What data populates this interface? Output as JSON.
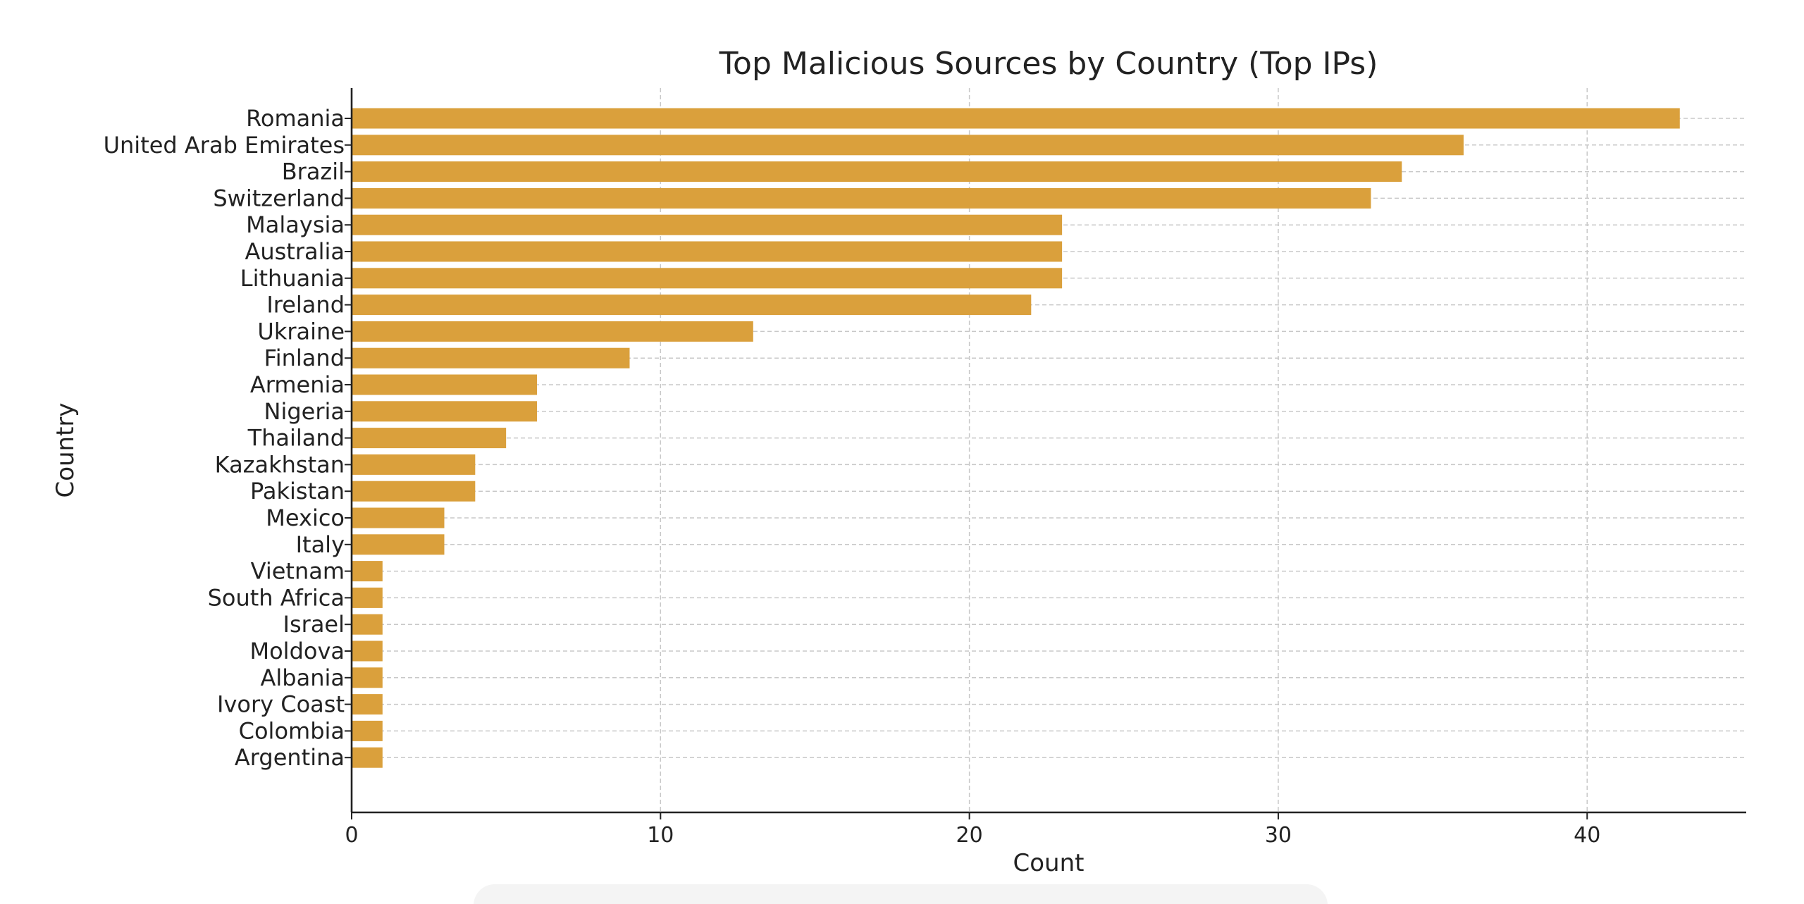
{
  "chart_data": {
    "type": "bar",
    "orientation": "horizontal",
    "title": "Top Malicious Sources by Country (Top IPs)",
    "xlabel": "Count",
    "ylabel": "Country",
    "categories": [
      "Romania",
      "United Arab Emirates",
      "Brazil",
      "Switzerland",
      "Malaysia",
      "Australia",
      "Lithuania",
      "Ireland",
      "Ukraine",
      "Finland",
      "Armenia",
      "Nigeria",
      "Thailand",
      "Kazakhstan",
      "Pakistan",
      "Mexico",
      "Italy",
      "Vietnam",
      "South Africa",
      "Israel",
      "Moldova",
      "Albania",
      "Ivory Coast",
      "Colombia",
      "Argentina"
    ],
    "values": [
      43,
      36,
      34,
      33,
      23,
      23,
      23,
      22,
      13,
      9,
      6,
      6,
      5,
      4,
      4,
      3,
      3,
      1,
      1,
      1,
      1,
      1,
      1,
      1,
      1
    ],
    "xlim": [
      0,
      45.15
    ],
    "xticks": [
      0,
      10,
      20,
      30,
      40
    ],
    "xtick_labels": [
      "0",
      "10",
      "20",
      "30",
      "40"
    ],
    "grid": true,
    "bar_color": "#DAA03C",
    "text_color": "#222222"
  }
}
